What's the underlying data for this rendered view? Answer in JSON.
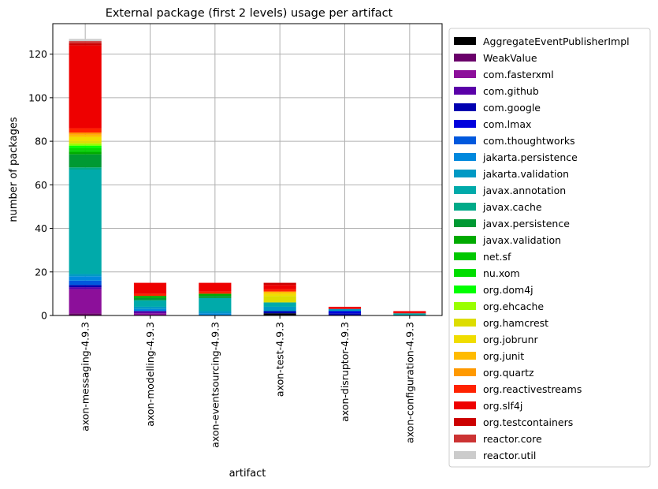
{
  "chart_data": {
    "type": "bar",
    "stacked": true,
    "title": "External package (first 2 levels) usage per artifact",
    "xlabel": "artifact",
    "ylabel": "number of packages",
    "ylim": [
      0,
      134
    ],
    "yticks": [
      0,
      20,
      40,
      60,
      80,
      100,
      120
    ],
    "grid": true,
    "legend_position": "outside-right",
    "categories": [
      "axon-messaging-4.9.3",
      "axon-modelling-4.9.3",
      "axon-eventsourcing-4.9.3",
      "axon-test-4.9.3",
      "axon-disruptor-4.9.3",
      "axon-configuration-4.9.3"
    ],
    "series": [
      {
        "name": "AggregateEventPublisherImpl",
        "color": "#000000",
        "values": [
          0,
          0,
          0,
          1,
          0,
          0
        ]
      },
      {
        "name": "WeakValue",
        "color": "#6a006a",
        "values": [
          1,
          0,
          0,
          0,
          0,
          0
        ]
      },
      {
        "name": "com.fasterxml",
        "color": "#8c0f9a",
        "values": [
          11,
          1,
          0,
          0,
          0,
          0
        ]
      },
      {
        "name": "com.github",
        "color": "#5a00a8",
        "values": [
          1,
          1,
          0,
          0,
          0,
          0
        ]
      },
      {
        "name": "com.google",
        "color": "#0000b0",
        "values": [
          1,
          0,
          0,
          1,
          1,
          0
        ]
      },
      {
        "name": "com.lmax",
        "color": "#0000dd",
        "values": [
          0,
          0,
          0,
          0,
          1,
          0
        ]
      },
      {
        "name": "com.thoughtworks",
        "color": "#0058dd",
        "values": [
          2,
          0,
          0,
          0,
          0,
          0
        ]
      },
      {
        "name": "jakarta.persistence",
        "color": "#0088dd",
        "values": [
          2,
          1,
          1,
          0,
          0,
          0
        ]
      },
      {
        "name": "jakarta.validation",
        "color": "#0099c4",
        "values": [
          1,
          1,
          1,
          2,
          1,
          0
        ]
      },
      {
        "name": "javax.annotation",
        "color": "#00aaaa",
        "values": [
          48,
          3,
          6,
          2,
          0,
          1
        ]
      },
      {
        "name": "javax.cache",
        "color": "#00aa88",
        "values": [
          1,
          0,
          0,
          0,
          0,
          0
        ]
      },
      {
        "name": "javax.persistence",
        "color": "#009933",
        "values": [
          6,
          1,
          1,
          0,
          0,
          0
        ]
      },
      {
        "name": "javax.validation",
        "color": "#00aa00",
        "values": [
          1,
          1,
          1,
          0,
          0,
          0
        ]
      },
      {
        "name": "net.sf",
        "color": "#00c800",
        "values": [
          1,
          0,
          0,
          0,
          0,
          0
        ]
      },
      {
        "name": "nu.xom",
        "color": "#00dd00",
        "values": [
          1,
          0,
          0,
          0,
          0,
          0
        ]
      },
      {
        "name": "org.dom4j",
        "color": "#00ff00",
        "values": [
          1,
          0,
          0,
          0,
          0,
          0
        ]
      },
      {
        "name": "org.ehcache",
        "color": "#99ff00",
        "values": [
          1,
          0,
          0,
          0,
          0,
          0
        ]
      },
      {
        "name": "org.hamcrest",
        "color": "#dddd00",
        "values": [
          1,
          0,
          0,
          3,
          0,
          0
        ]
      },
      {
        "name": "org.jobrunr",
        "color": "#f0dd00",
        "values": [
          2,
          0,
          0,
          1,
          0,
          0
        ]
      },
      {
        "name": "org.junit",
        "color": "#ffbb00",
        "values": [
          1,
          0,
          0,
          1,
          0,
          0
        ]
      },
      {
        "name": "org.quartz",
        "color": "#ff9900",
        "values": [
          1,
          0,
          0,
          0,
          0,
          0
        ]
      },
      {
        "name": "org.reactivestreams",
        "color": "#ff2200",
        "values": [
          2,
          1,
          1,
          1,
          0,
          0
        ]
      },
      {
        "name": "org.slf4j",
        "color": "#ee0000",
        "values": [
          38,
          5,
          4,
          2,
          1,
          1
        ]
      },
      {
        "name": "org.testcontainers",
        "color": "#cc0000",
        "values": [
          1,
          0,
          0,
          1,
          0,
          0
        ]
      },
      {
        "name": "reactor.core",
        "color": "#cc3333",
        "values": [
          1,
          0,
          0,
          0,
          0,
          0
        ]
      },
      {
        "name": "reactor.util",
        "color": "#cccccc",
        "values": [
          1,
          0,
          0,
          0,
          0,
          0
        ]
      }
    ]
  }
}
